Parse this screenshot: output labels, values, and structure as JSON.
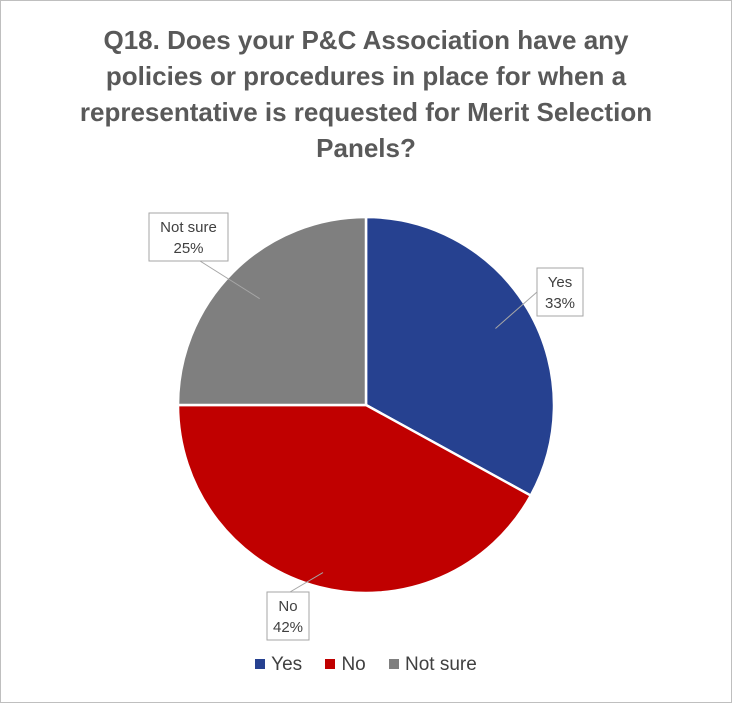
{
  "chart_data": {
    "type": "pie",
    "title_lines": [
      "Q18. Does your P&C Association have any",
      "policies or procedures in place for when a",
      "representative is requested for Merit Selection",
      "Panels?"
    ],
    "categories": [
      "Yes",
      "No",
      "Not sure"
    ],
    "values": [
      33,
      42,
      25
    ],
    "value_labels": [
      "33%",
      "42%",
      "25%"
    ],
    "colors": [
      "#264190",
      "#c00000",
      "#7f7f7f"
    ],
    "start_angle": "12 o'clock, clockwise",
    "legend_position": "bottom"
  }
}
